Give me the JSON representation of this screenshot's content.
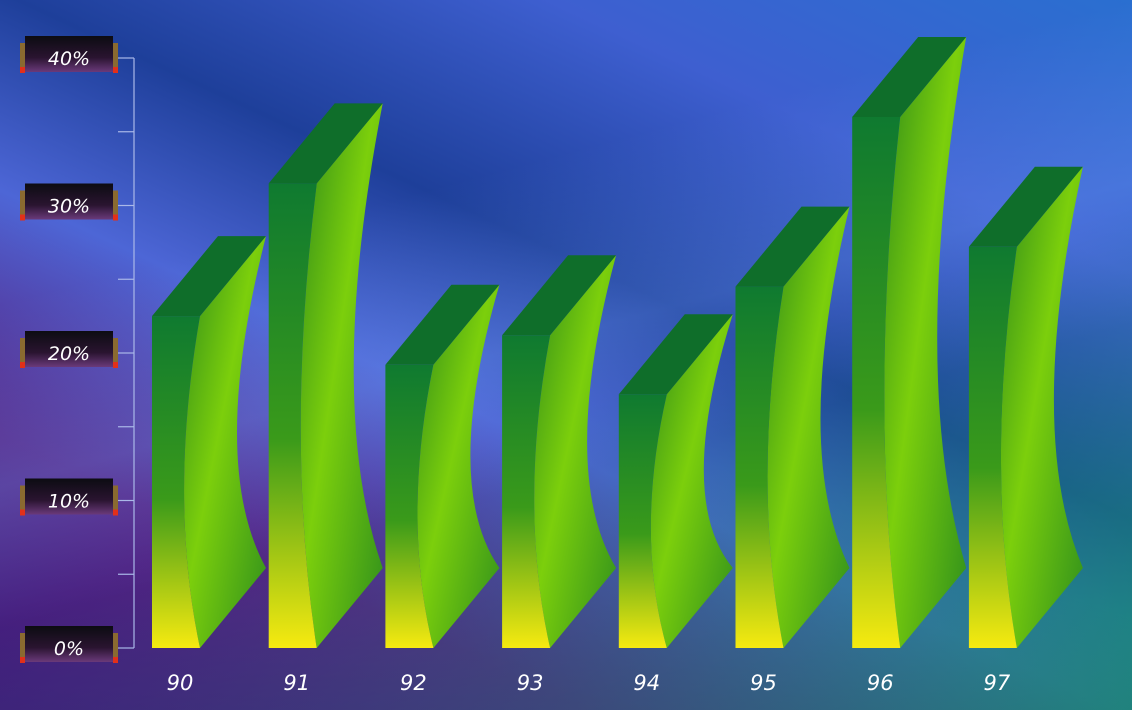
{
  "chart_data": {
    "type": "bar",
    "categories": [
      "90",
      "91",
      "92",
      "93",
      "94",
      "95",
      "96",
      "97"
    ],
    "values": [
      22.5,
      31.5,
      19.2,
      21.2,
      17.2,
      24.5,
      36.0,
      27.2
    ],
    "ylim": [
      0,
      40
    ],
    "yticks": [
      "0%",
      "10%",
      "20%",
      "30%",
      "40%"
    ],
    "ytick_values": [
      0,
      10,
      20,
      30,
      40
    ],
    "grid": false,
    "colors": {
      "bar_top": "#0f6e2a",
      "bar_front_top": "#0f7a30",
      "bar_front_bottom": "#f6ea10",
      "bar_side_light": "#7ccf0c",
      "bar_side_dark": "#2e8a1a",
      "axis": "#aab8e8",
      "label_box": "#101018",
      "label_accent": "#e2301a"
    }
  }
}
